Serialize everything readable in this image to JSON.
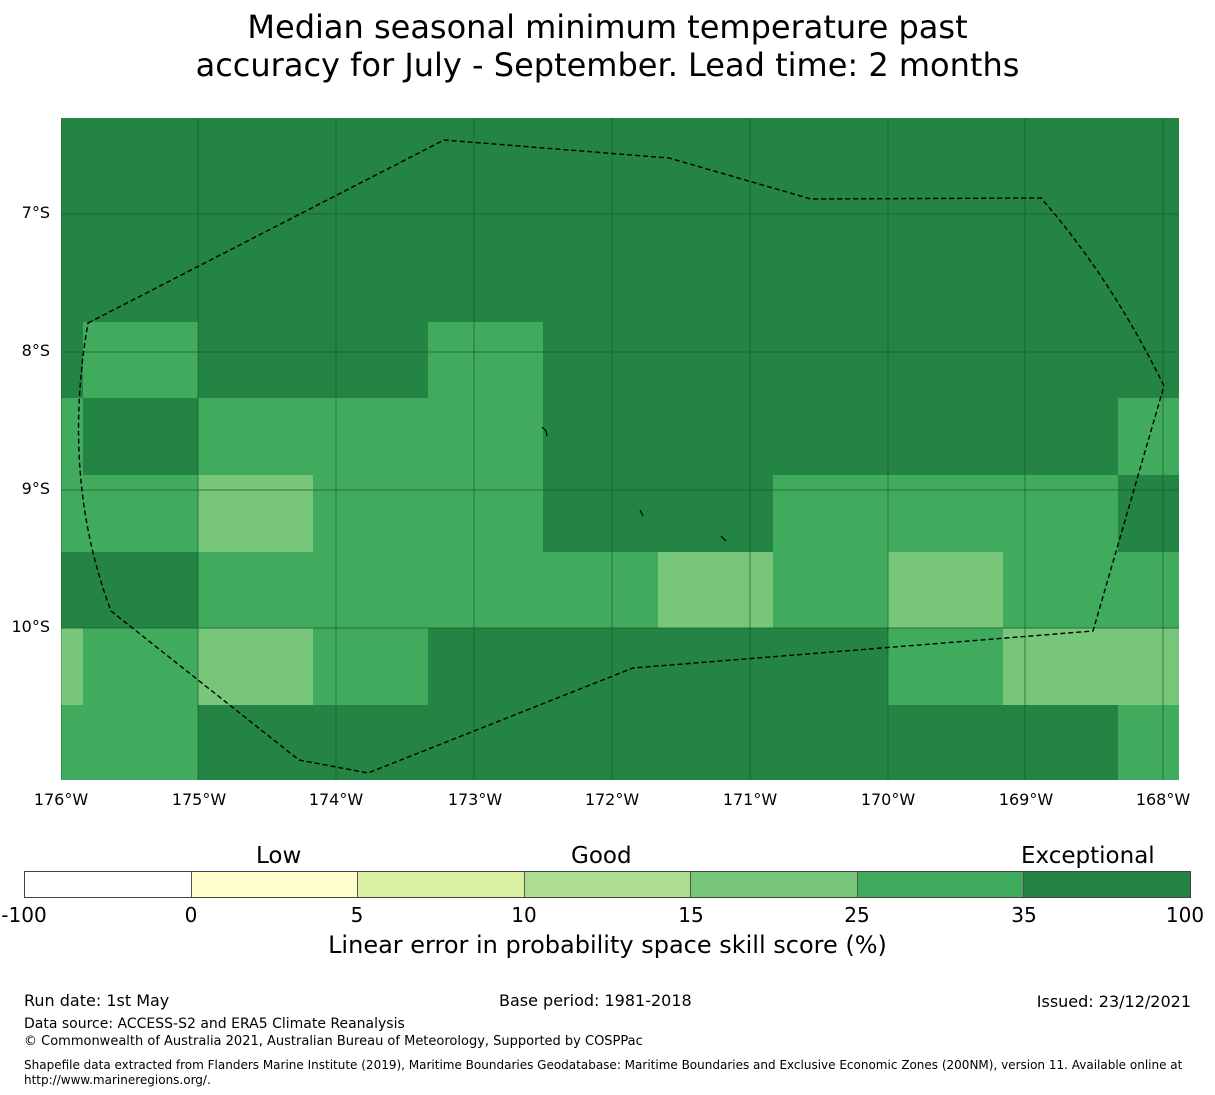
{
  "title": {
    "line1": "Median seasonal minimum temperature past",
    "line2": "accuracy for July - September. Lead time: 2 months"
  },
  "map": {
    "lat_labels": [
      "7°S",
      "8°S",
      "9°S",
      "10°S"
    ],
    "lon_labels": [
      "176°W",
      "175°W",
      "174°W",
      "173°W",
      "172°W",
      "171°W",
      "170°W",
      "169°W",
      "168°W"
    ],
    "grid": [
      [
        6,
        6,
        6,
        6,
        6,
        6,
        6,
        6,
        6,
        6,
        6
      ],
      [
        6,
        6,
        6,
        6,
        6,
        6,
        6,
        6,
        6,
        6,
        6
      ],
      [
        6,
        5,
        6,
        6,
        5,
        6,
        6,
        6,
        6,
        6,
        6
      ],
      [
        5,
        6,
        5,
        5,
        5,
        6,
        6,
        6,
        6,
        6,
        5
      ],
      [
        5,
        5,
        4,
        5,
        5,
        6,
        6,
        5,
        5,
        5,
        6
      ],
      [
        6,
        6,
        5,
        5,
        5,
        5,
        4,
        5,
        4,
        5,
        5
      ],
      [
        4,
        5,
        4,
        5,
        6,
        6,
        6,
        6,
        5,
        4,
        4
      ],
      [
        5,
        5,
        6,
        6,
        6,
        6,
        6,
        6,
        6,
        6,
        5
      ]
    ],
    "boundary_style": "dashed"
  },
  "colorbar": {
    "categories": [
      "Low",
      "Good",
      "Exceptional"
    ],
    "ticks": [
      "-100",
      "0",
      "5",
      "10",
      "15",
      "25",
      "35",
      "100"
    ],
    "colors": [
      "#ffffff",
      "#ffffcc",
      "#d9f0a3",
      "#addd8e",
      "#78c679",
      "#41ab5d",
      "#238443"
    ],
    "label": "Linear error in probability space skill score (%)"
  },
  "footer": {
    "run_date": "Run date: 1st May",
    "base_period": "Base period: 1981-2018",
    "issued": "Issued: 23/12/2021",
    "data_source": "Data source: ACCESS-S2 and ERA5 Climate Reanalysis",
    "copyright": "© Commonwealth of Australia 2021, Australian Bureau of Meteorology, Supported by COSPPac",
    "shapefile": "Shapefile data extracted from Flanders Marine Institute (2019), Maritime Boundaries Geodatabase: Maritime Boundaries and Exclusive Economic Zones (200NM), version 11. Available online at http://www.marineregions.org/."
  }
}
